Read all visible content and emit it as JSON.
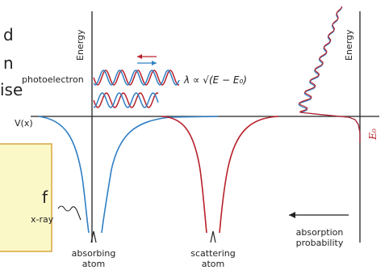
{
  "left_panel": {
    "axis_label": "Energy",
    "v_label": "V(x)",
    "photoelectron_label": "photoelectron",
    "wavelength_formula": "λ ∝ √(E − E₀)",
    "xray_label": "x-ray",
    "absorbing_atom_label": [
      "absorbing",
      "atom"
    ],
    "scattering_atom_label": [
      "scattering",
      "atom"
    ]
  },
  "right_panel": {
    "axis_label": "Energy",
    "absorption_probability_label": [
      "absorption",
      "probability"
    ],
    "e0_label": "E₀"
  },
  "clipped_text": {
    "fragments": [
      "d",
      "n",
      "ise",
      "f"
    ]
  },
  "colors": {
    "red": "#b8202a",
    "blue": "#2f7fc4",
    "axis": "#222222",
    "note_fill": "#fbf8c8",
    "note_border": "#d6a640"
  }
}
